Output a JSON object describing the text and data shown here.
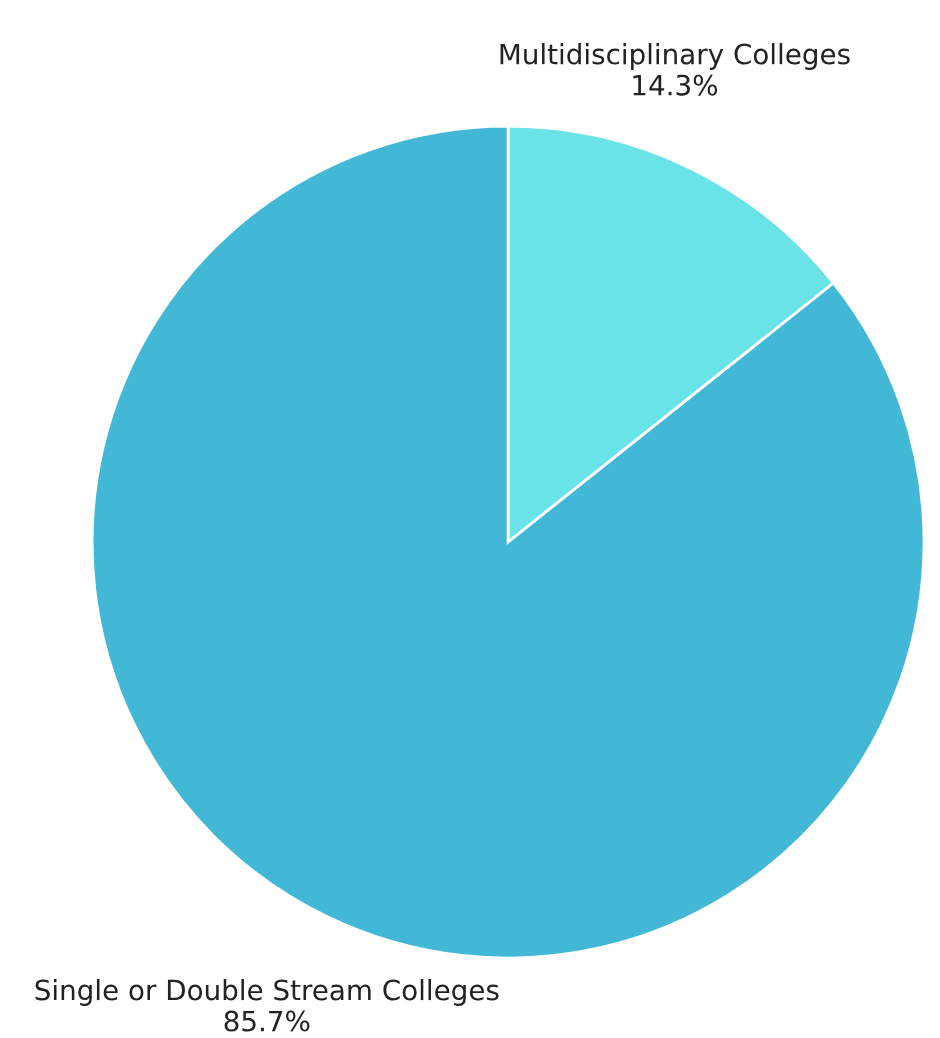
{
  "chart_data": {
    "type": "pie",
    "categories": [
      "Multidisciplinary Colleges",
      "Single or Double Stream Colleges"
    ],
    "values": [
      14.3,
      85.7
    ],
    "colors": [
      "#6ae3e8",
      "#42b7d6"
    ],
    "value_labels": [
      "14.3%",
      "85.7%"
    ]
  }
}
